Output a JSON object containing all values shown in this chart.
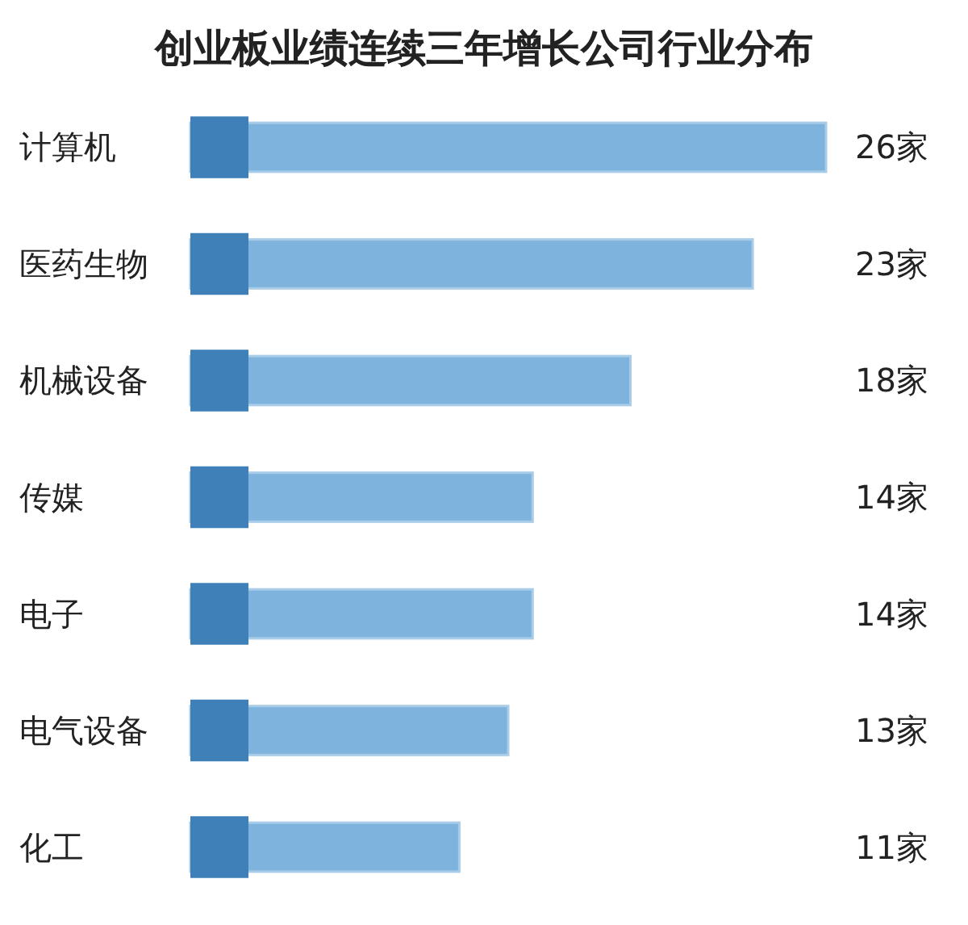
{
  "chart_data": {
    "type": "bar",
    "orientation": "horizontal",
    "title": "创业板业绩连续三年增长公司行业分布",
    "categories": [
      "计算机",
      "医药生物",
      "机械设备",
      "传媒",
      "电子",
      "电气设备",
      "化工"
    ],
    "values": [
      26,
      23,
      18,
      14,
      14,
      13,
      11
    ],
    "value_labels": [
      "26家",
      "23家",
      "18家",
      "14家",
      "14家",
      "13家",
      "11家"
    ],
    "color": "#7db3dc"
  }
}
